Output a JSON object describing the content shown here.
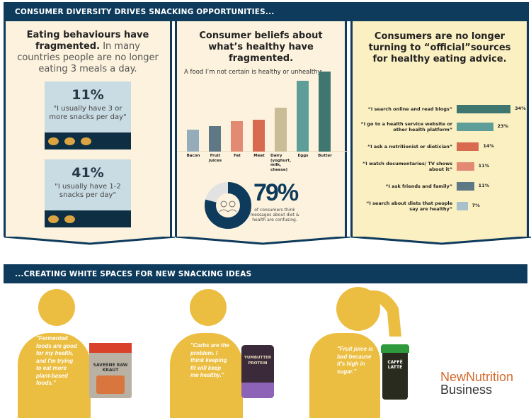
{
  "header1": "CONSUMER DIVERSITY DRIVES SNACKING OPPORTUNITIES...",
  "header2": "...CREATING WHITE SPACES FOR NEW SNACKING IDEAS",
  "panel1": {
    "title_bold": "Eating behaviours have fragmented.",
    "title_rest": " In many countries people are no longer eating 3 meals a day.",
    "stats": [
      {
        "pct": "11%",
        "quote": "\"I usually have 3 or more snacks per day\"",
        "icons": 3
      },
      {
        "pct": "41%",
        "quote": "\"I usually have 1-2 snacks per day\"",
        "icons": 2
      }
    ]
  },
  "panel2": {
    "title": "Consumer beliefs about what’s healthy have fragmented.",
    "subtitle": "A food I’m not certain is healthy or unhealthy:",
    "stat_pct": "79%",
    "stat_text": "of consumers think messages about diet & health are confusing.",
    "donut_fraction": 0.79
  },
  "panel3": {
    "title": "Consumers are no longer turning to “official”sources for healthy eating advice."
  },
  "chart_data": [
    {
      "type": "bar",
      "title": "",
      "categories": [
        "Bacon",
        "Fruit Juices",
        "Fat",
        "Meat",
        "Dairy (yoghurt, milk, cheese)",
        "Eggs",
        "Butter"
      ],
      "values": [
        31,
        36,
        43,
        45,
        62,
        100,
        113
      ],
      "colors": [
        "#95adbb",
        "#5f7886",
        "#e38a72",
        "#d86a50",
        "#c9bd96",
        "#5e9e98",
        "#3f7770"
      ]
    },
    {
      "type": "bar",
      "orientation": "horizontal",
      "categories": [
        "“I search online and read blogs”",
        "“I go to a health service website or other health platform”",
        "“I ask a nutritionist or dietician”",
        "“I watch documentaries/ TV shows about it”",
        "“I ask friends and family”",
        "“I search about diets that people say are healthy”"
      ],
      "values": [
        34,
        23,
        14,
        11,
        11,
        7
      ],
      "labels": [
        "34%",
        "23%",
        "14%",
        "11%",
        "11%",
        "7%"
      ],
      "colors": [
        "#3f7770",
        "#5e9e98",
        "#d86a50",
        "#e38a72",
        "#5f7886",
        "#a9bfcc"
      ]
    }
  ],
  "people": [
    {
      "quote": "\"Fermented foods are good for my health, and I'm trying to eat more plant-based foods.\"",
      "product": "SAVERNE RAW KRAUT"
    },
    {
      "quote": "\"Carbs are the problem. I think keeping fit will keep me healthy.\"",
      "product": "YUMBUTTER PROTEIN"
    },
    {
      "quote": "\"Fruit juice is bad because it's high in sugar.\"",
      "product": "CAFFÈ LATTE"
    }
  ],
  "logo": {
    "line1": "NewNutrition",
    "line2": "Business"
  },
  "colors": {
    "navy": "#0e3b5c",
    "person": "#ebbd40",
    "logo_orange": "#d5692a"
  }
}
